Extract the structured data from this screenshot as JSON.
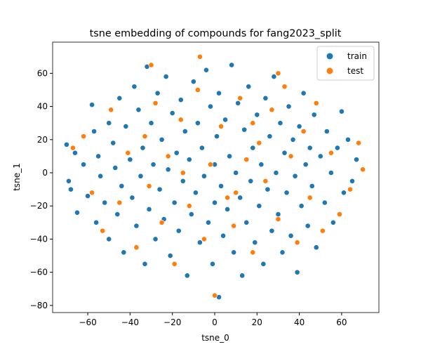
{
  "chart_data": {
    "type": "scatter",
    "title": "tsne embedding of compounds for fang2023_split",
    "xlabel": "tsne_0",
    "ylabel": "tsne_1",
    "xlim": [
      -76.6,
      77.6
    ],
    "ylim": [
      -84.3,
      78.8
    ],
    "xticks": [
      -60,
      -40,
      -20,
      0,
      20,
      40,
      60
    ],
    "yticks": [
      -80,
      -60,
      -40,
      -20,
      0,
      20,
      40,
      60
    ],
    "legend_position": "top-right",
    "grid": false,
    "series": [
      {
        "name": "train",
        "color": "#1f77b4",
        "points": [
          [
            -70,
            17
          ],
          [
            -69,
            -5
          ],
          [
            -68,
            -10
          ],
          [
            -66,
            12
          ],
          [
            -65,
            -24
          ],
          [
            -62,
            5
          ],
          [
            -60,
            -14
          ],
          [
            -58,
            41
          ],
          [
            -57,
            25
          ],
          [
            -56,
            -30
          ],
          [
            -55,
            10
          ],
          [
            -54,
            -2
          ],
          [
            -52,
            -18
          ],
          [
            -50,
            30
          ],
          [
            -50,
            -40
          ],
          [
            -48,
            18
          ],
          [
            -47,
            3
          ],
          [
            -46,
            -25
          ],
          [
            -45,
            45
          ],
          [
            -44,
            -8
          ],
          [
            -43,
            -48
          ],
          [
            -42,
            28
          ],
          [
            -40,
            8
          ],
          [
            -39,
            -15
          ],
          [
            -38,
            52
          ],
          [
            -37,
            -32
          ],
          [
            -36,
            38
          ],
          [
            -35,
            -2
          ],
          [
            -34,
            15
          ],
          [
            -33,
            -55
          ],
          [
            -32,
            64
          ],
          [
            -31,
            -22
          ],
          [
            -30,
            30
          ],
          [
            -29,
            5
          ],
          [
            -28,
            -40
          ],
          [
            -27,
            48
          ],
          [
            -26,
            -10
          ],
          [
            -25,
            20
          ],
          [
            -24,
            -28
          ],
          [
            -23,
            58
          ],
          [
            -22,
            2
          ],
          [
            -21,
            -50
          ],
          [
            -20,
            36
          ],
          [
            -19,
            -18
          ],
          [
            -18,
            12
          ],
          [
            -17,
            -35
          ],
          [
            -16,
            44
          ],
          [
            -15,
            -5
          ],
          [
            -14,
            25
          ],
          [
            -13,
            -62
          ],
          [
            -12,
            8
          ],
          [
            -11,
            -25
          ],
          [
            -10,
            55
          ],
          [
            -9,
            -12
          ],
          [
            -8,
            30
          ],
          [
            -7,
            -42
          ],
          [
            -6,
            15
          ],
          [
            -5,
            -2
          ],
          [
            -4,
            62
          ],
          [
            -3,
            -30
          ],
          [
            -2,
            40
          ],
          [
            -1,
            -55
          ],
          [
            0,
            5
          ],
          [
            0,
            -18
          ],
          [
            1,
            22
          ],
          [
            2,
            -75
          ],
          [
            2,
            48
          ],
          [
            3,
            -8
          ],
          [
            4,
            -38
          ],
          [
            5,
            32
          ],
          [
            6,
            -22
          ],
          [
            7,
            10
          ],
          [
            8,
            65
          ],
          [
            9,
            -48
          ],
          [
            10,
            0
          ],
          [
            11,
            42
          ],
          [
            12,
            -15
          ],
          [
            13,
            -62
          ],
          [
            14,
            26
          ],
          [
            15,
            -30
          ],
          [
            16,
            52
          ],
          [
            17,
            -5
          ],
          [
            18,
            15
          ],
          [
            19,
            -42
          ],
          [
            20,
            35
          ],
          [
            21,
            -20
          ],
          [
            22,
            5
          ],
          [
            23,
            -55
          ],
          [
            24,
            45
          ],
          [
            25,
            -10
          ],
          [
            26,
            22
          ],
          [
            27,
            -35
          ],
          [
            28,
            58
          ],
          [
            29,
            0
          ],
          [
            30,
            -25
          ],
          [
            31,
            30
          ],
          [
            32,
            -48
          ],
          [
            33,
            12
          ],
          [
            34,
            -12
          ],
          [
            35,
            40
          ],
          [
            36,
            -38
          ],
          [
            37,
            20
          ],
          [
            38,
            -2
          ],
          [
            39,
            -60
          ],
          [
            40,
            28
          ],
          [
            41,
            -20
          ],
          [
            42,
            48
          ],
          [
            43,
            5
          ],
          [
            44,
            -32
          ],
          [
            45,
            15
          ],
          [
            46,
            -8
          ],
          [
            47,
            35
          ],
          [
            48,
            -45
          ],
          [
            50,
            10
          ],
          [
            52,
            -18
          ],
          [
            53,
            25
          ],
          [
            55,
            0
          ],
          [
            56,
            -30
          ],
          [
            58,
            15
          ],
          [
            60,
            37
          ],
          [
            61,
            -12
          ],
          [
            63,
            20
          ],
          [
            65,
            -5
          ],
          [
            67,
            8
          ]
        ]
      },
      {
        "name": "test",
        "color": "#ff7f0e",
        "points": [
          [
            -67,
            15
          ],
          [
            -62,
            22
          ],
          [
            -58,
            -12
          ],
          [
            -53,
            -35
          ],
          [
            -49,
            38
          ],
          [
            -45,
            -18
          ],
          [
            -41,
            12
          ],
          [
            -37,
            -45
          ],
          [
            -33,
            22
          ],
          [
            -31,
            -8
          ],
          [
            -28,
            42
          ],
          [
            -25,
            -30
          ],
          [
            -22,
            10
          ],
          [
            -19,
            -55
          ],
          [
            -16,
            32
          ],
          [
            -12,
            -20
          ],
          [
            -8,
            50
          ],
          [
            -5,
            -40
          ],
          [
            -2,
            5
          ],
          [
            0,
            -74
          ],
          [
            -7,
            70
          ],
          [
            3,
            28
          ],
          [
            6,
            -15
          ],
          [
            9,
            -32
          ],
          [
            12,
            45
          ],
          [
            15,
            8
          ],
          [
            18,
            -48
          ],
          [
            21,
            18
          ],
          [
            24,
            -5
          ],
          [
            27,
            38
          ],
          [
            30,
            -28
          ],
          [
            33,
            52
          ],
          [
            36,
            10
          ],
          [
            39,
            -42
          ],
          [
            42,
            25
          ],
          [
            45,
            -15
          ],
          [
            48,
            42
          ],
          [
            51,
            -35
          ],
          [
            55,
            12
          ],
          [
            59,
            -25
          ],
          [
            64,
            -10
          ],
          [
            68,
            18
          ],
          [
            70,
            2
          ],
          [
            30,
            60
          ],
          [
            -30,
            65
          ],
          [
            10,
            -12
          ],
          [
            -15,
            0
          ],
          [
            18,
            30
          ]
        ]
      }
    ]
  }
}
